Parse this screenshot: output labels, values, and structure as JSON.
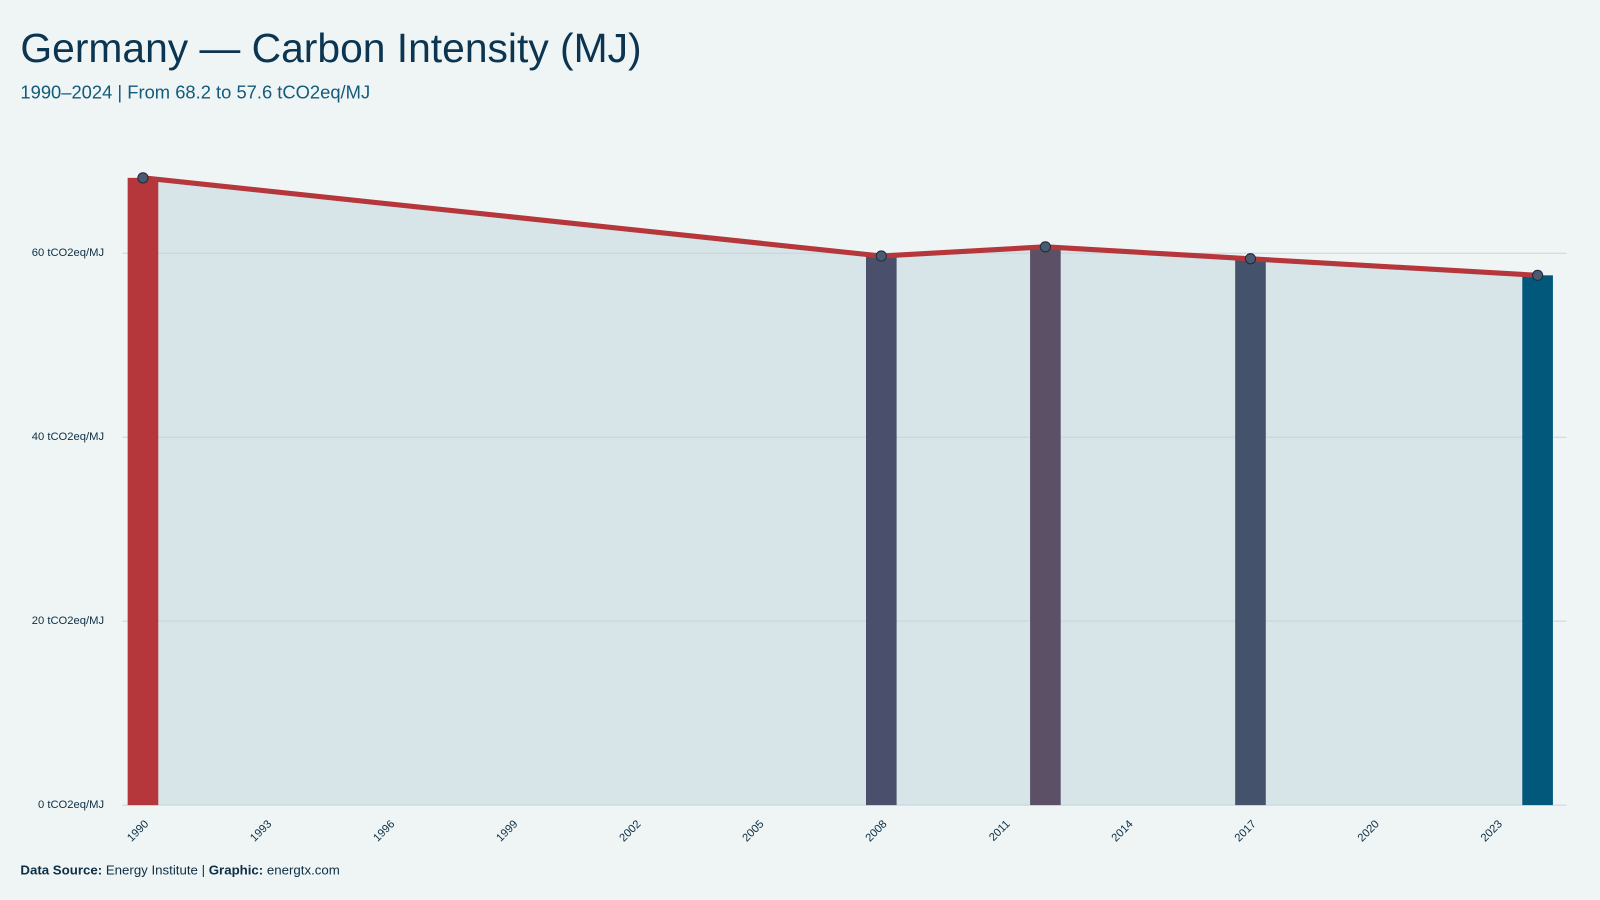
{
  "chart_data": {
    "type": "combo",
    "title": "Germany — Carbon Intensity (MJ)",
    "subtitle": "1990–2024 | From 68.2 to 57.6 tCO2eq/MJ",
    "x": [
      1990,
      2008,
      2012,
      2017,
      2024
    ],
    "values": [
      68.2,
      59.7,
      60.7,
      59.4,
      57.6
    ],
    "bar_colors": [
      "#b5373b",
      "#4a506b",
      "#5c5066",
      "#44526b",
      "#02587a"
    ],
    "line_color": "#b5373b",
    "area_color": "#d7e4e8",
    "xlim": [
      1989.5,
      2024.7
    ],
    "xticks": [
      1990,
      1993,
      1996,
      1999,
      2002,
      2005,
      2008,
      2011,
      2014,
      2017,
      2020,
      2023
    ],
    "ylim": [
      0,
      75
    ],
    "yticks": [
      {
        "value": 0,
        "label": "0 tCO2eq/MJ"
      },
      {
        "value": 20,
        "label": "20 tCO2eq/MJ"
      },
      {
        "value": 40,
        "label": "40 tCO2eq/MJ"
      },
      {
        "value": 60,
        "label": "60 tCO2eq/MJ"
      }
    ],
    "grid": true,
    "source_label": "Data Source:",
    "source": "Energy Institute",
    "separator": "|",
    "graphic_label": "Graphic:",
    "graphic": "energtx.com"
  }
}
